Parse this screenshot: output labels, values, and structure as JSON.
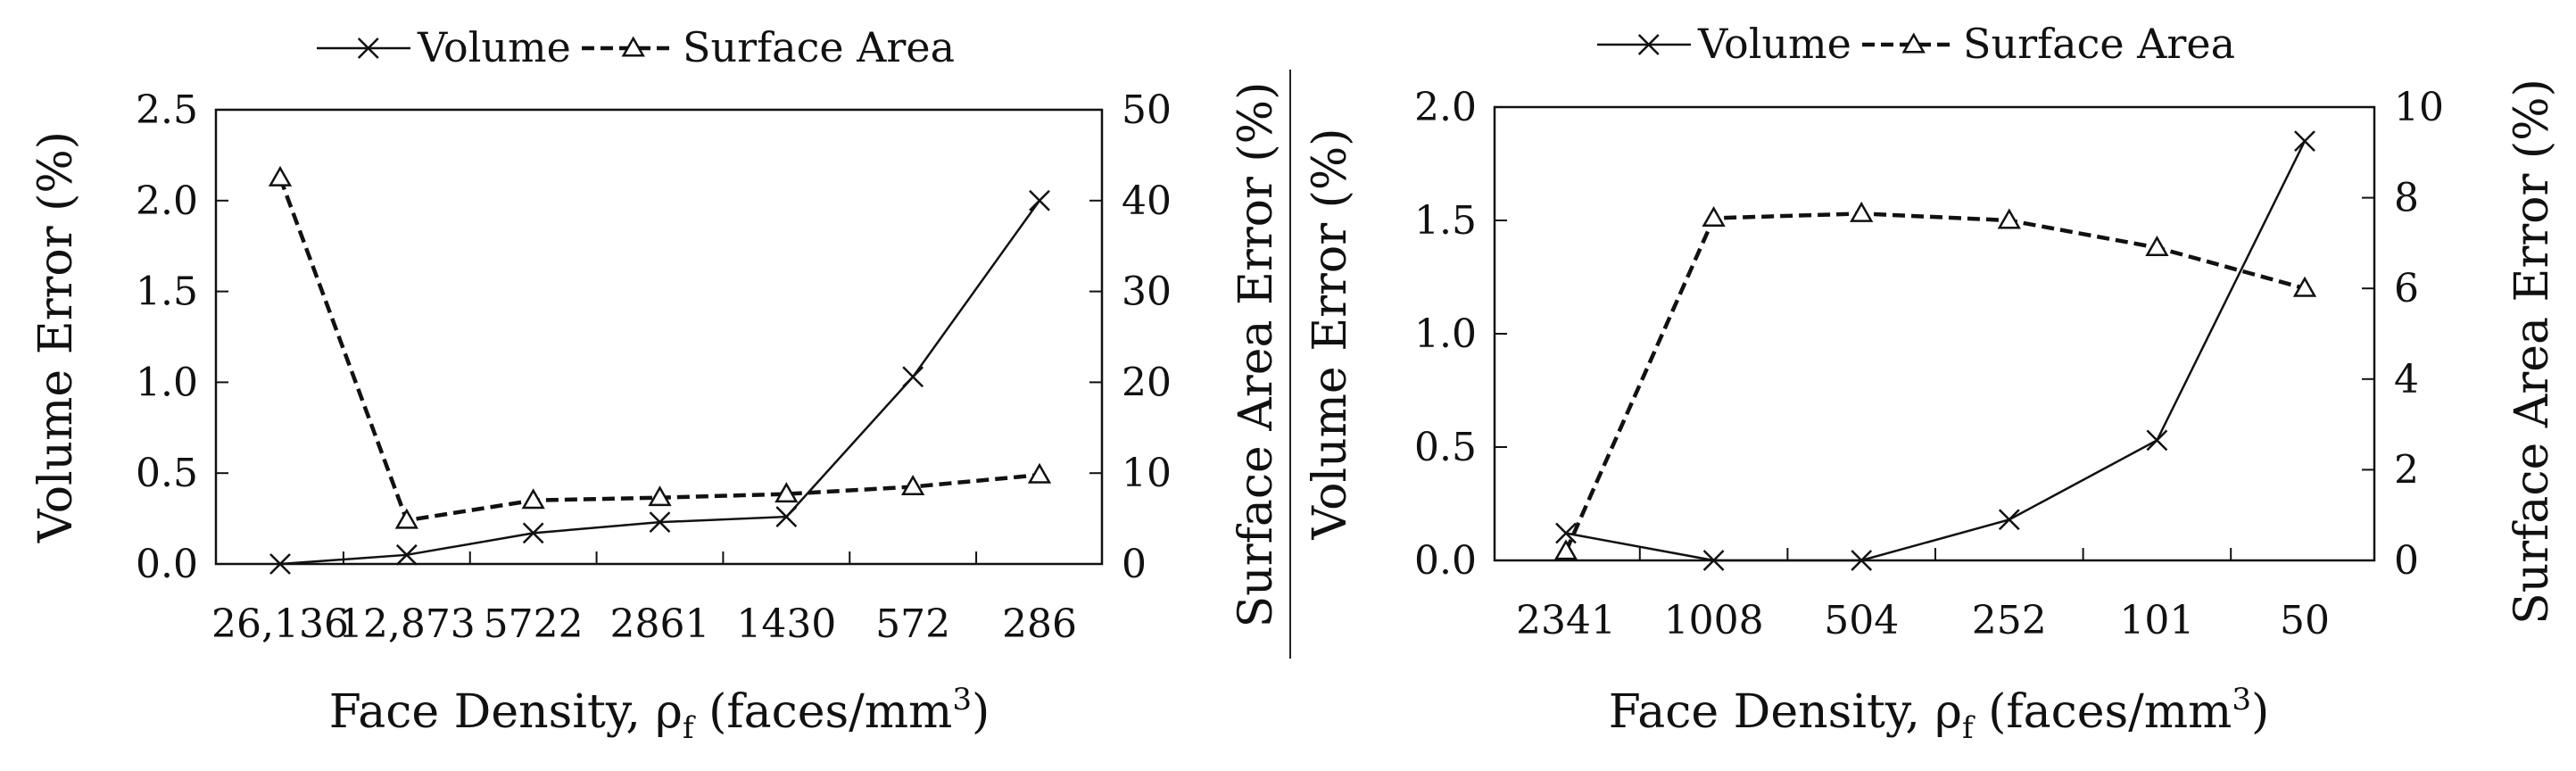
{
  "chart_data": [
    {
      "type": "line",
      "xlabel_prefix": "Face Density, ",
      "xlabel_symbol": "ρ",
      "xlabel_sub": "f",
      "xlabel_unit": " (faces/mm",
      "xlabel_sup": "3",
      "xlabel_close": ")",
      "ylabel": "Volume Error (%)",
      "y2label": "Surface Area Error (%)",
      "categories": [
        "26,136",
        "12,873",
        "5722",
        "2861",
        "1430",
        "572",
        "286"
      ],
      "ylim": [
        0,
        2.5
      ],
      "yticks": [
        "0.0",
        "0.5",
        "1.0",
        "1.5",
        "2.0",
        "2.5"
      ],
      "y2lim": [
        0,
        50
      ],
      "y2ticks": [
        "0",
        "10",
        "20",
        "30",
        "40",
        "50"
      ],
      "legend_position": "top-center",
      "series": [
        {
          "name": "Volume",
          "axis": "left",
          "marker": "x",
          "dash": "solid",
          "values": [
            0.0,
            0.05,
            0.17,
            0.23,
            0.26,
            1.03,
            2.0
          ]
        },
        {
          "name": "Surface Area",
          "axis": "right",
          "marker": "triangle",
          "dash": "dashed",
          "values": [
            42.5,
            4.8,
            7.0,
            7.3,
            7.7,
            8.5,
            9.8
          ]
        }
      ]
    },
    {
      "type": "line",
      "xlabel_prefix": "Face Density, ",
      "xlabel_symbol": "ρ",
      "xlabel_sub": "f",
      "xlabel_unit": " (faces/mm",
      "xlabel_sup": "3",
      "xlabel_close": ")",
      "ylabel": "Volume Error (%)",
      "y2label": "Surface Area Error (%)",
      "categories": [
        "2341",
        "1008",
        "504",
        "252",
        "101",
        "50"
      ],
      "ylim": [
        0,
        2.0
      ],
      "yticks": [
        "0.0",
        "0.5",
        "1.0",
        "1.5",
        "2.0"
      ],
      "y2lim": [
        0,
        10
      ],
      "y2ticks": [
        "0",
        "2",
        "4",
        "6",
        "8",
        "10"
      ],
      "legend_position": "top-center",
      "series": [
        {
          "name": "Volume",
          "axis": "left",
          "marker": "x",
          "dash": "solid",
          "values": [
            0.12,
            0.0,
            0.0,
            0.18,
            0.53,
            1.85
          ]
        },
        {
          "name": "Surface Area",
          "axis": "right",
          "marker": "triangle",
          "dash": "dashed",
          "values": [
            0.2,
            7.55,
            7.65,
            7.5,
            6.9,
            6.0
          ]
        }
      ]
    }
  ]
}
